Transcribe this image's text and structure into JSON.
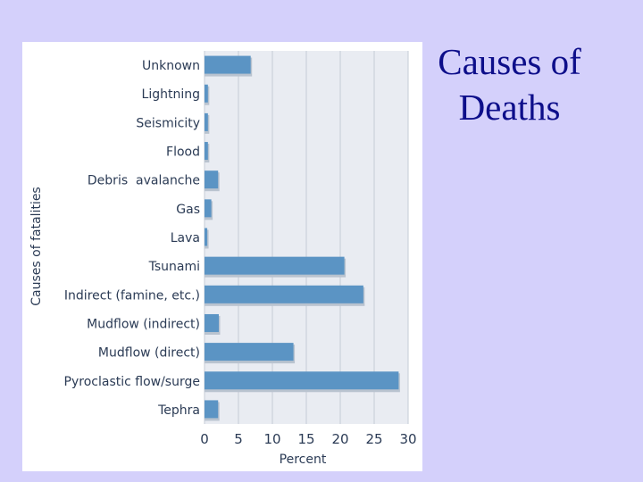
{
  "slide": {
    "title_line1": "Causes of",
    "title_line2": "Deaths",
    "title_color": "#0d0e8a",
    "background_color": "#d4d0fb"
  },
  "chart_data": {
    "type": "bar",
    "orientation": "horizontal",
    "categories": [
      "Unknown",
      "Lightning",
      "Seismicity",
      "Flood",
      "Debris  avalanche",
      "Gas",
      "Lava",
      "Tsunami",
      "Indirect (famine, etc.)",
      "Mudflow (indirect)",
      "Mudflow (direct)",
      "Pyroclastic flow/surge",
      "Tephra"
    ],
    "values": [
      7,
      0.7,
      0.7,
      0.7,
      2.2,
      1.2,
      0.6,
      20.8,
      23.6,
      2.3,
      13.3,
      28.8,
      2.2
    ],
    "xlabel": "Percent",
    "ylabel": "Causes of fatalities",
    "xlim": [
      0,
      30
    ],
    "xticks": [
      "0",
      "5",
      "10",
      "15",
      "20",
      "25",
      "30"
    ],
    "grid": "vertical",
    "bar_color": "#5b94c4",
    "plot_background": "#e9ecf2",
    "grid_color": "#c5cbd6"
  }
}
